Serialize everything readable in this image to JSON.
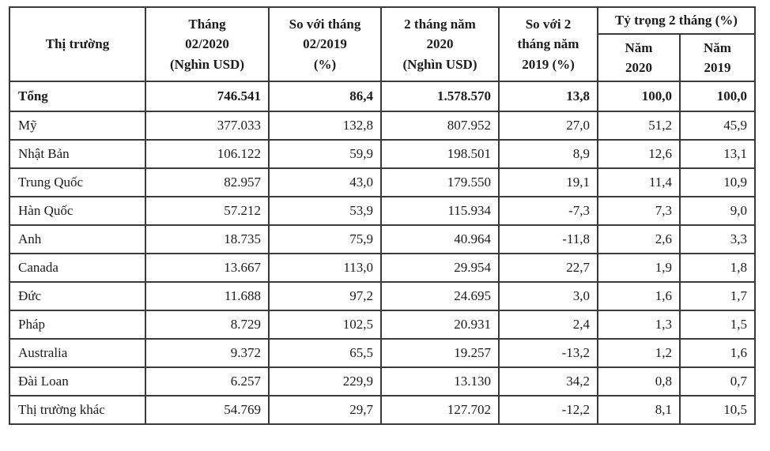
{
  "colors": {
    "border": "#3a3a3a",
    "text": "#1b1b1b",
    "background": "#ffffff"
  },
  "table": {
    "header": {
      "market": "Thị trường",
      "month_2020": "Tháng\n02/2020\n(Nghìn USD)",
      "vs_month_2019": "So với tháng\n02/2019\n(%)",
      "two_months_2020": "2 tháng năm\n2020\n(Nghìn USD)",
      "vs_two_months_2019": "So với 2\ntháng năm\n2019 (%)",
      "share_group": "Tỷ trọng 2 tháng (%)",
      "share_2020": "Năm\n2020",
      "share_2019": "Năm\n2019"
    },
    "rows": [
      {
        "market": "Tổng",
        "bold": true,
        "cells": [
          "746.541",
          "86,4",
          "1.578.570",
          "13,8",
          "100,0",
          "100,0"
        ]
      },
      {
        "market": "Mỹ",
        "bold": false,
        "cells": [
          "377.033",
          "132,8",
          "807.952",
          "27,0",
          "51,2",
          "45,9"
        ]
      },
      {
        "market": "Nhật Bản",
        "bold": false,
        "cells": [
          "106.122",
          "59,9",
          "198.501",
          "8,9",
          "12,6",
          "13,1"
        ]
      },
      {
        "market": "Trung Quốc",
        "bold": false,
        "cells": [
          "82.957",
          "43,0",
          "179.550",
          "19,1",
          "11,4",
          "10,9"
        ]
      },
      {
        "market": "Hàn Quốc",
        "bold": false,
        "cells": [
          "57.212",
          "53,9",
          "115.934",
          "-7,3",
          "7,3",
          "9,0"
        ]
      },
      {
        "market": "Anh",
        "bold": false,
        "cells": [
          "18.735",
          "75,9",
          "40.964",
          "-11,8",
          "2,6",
          "3,3"
        ]
      },
      {
        "market": "Canada",
        "bold": false,
        "cells": [
          "13.667",
          "113,0",
          "29.954",
          "22,7",
          "1,9",
          "1,8"
        ]
      },
      {
        "market": "Đức",
        "bold": false,
        "cells": [
          "11.688",
          "97,2",
          "24.695",
          "3,0",
          "1,6",
          "1,7"
        ]
      },
      {
        "market": "Pháp",
        "bold": false,
        "cells": [
          "8.729",
          "102,5",
          "20.931",
          "2,4",
          "1,3",
          "1,5"
        ]
      },
      {
        "market": "Australia",
        "bold": false,
        "cells": [
          "9.372",
          "65,5",
          "19.257",
          "-13,2",
          "1,2",
          "1,6"
        ]
      },
      {
        "market": "Đài Loan",
        "bold": false,
        "cells": [
          "6.257",
          "229,9",
          "13.130",
          "34,2",
          "0,8",
          "0,7"
        ]
      },
      {
        "market": "Thị trường khác",
        "bold": false,
        "cells": [
          "54.769",
          "29,7",
          "127.702",
          "-12,2",
          "8,1",
          "10,5"
        ]
      }
    ]
  }
}
